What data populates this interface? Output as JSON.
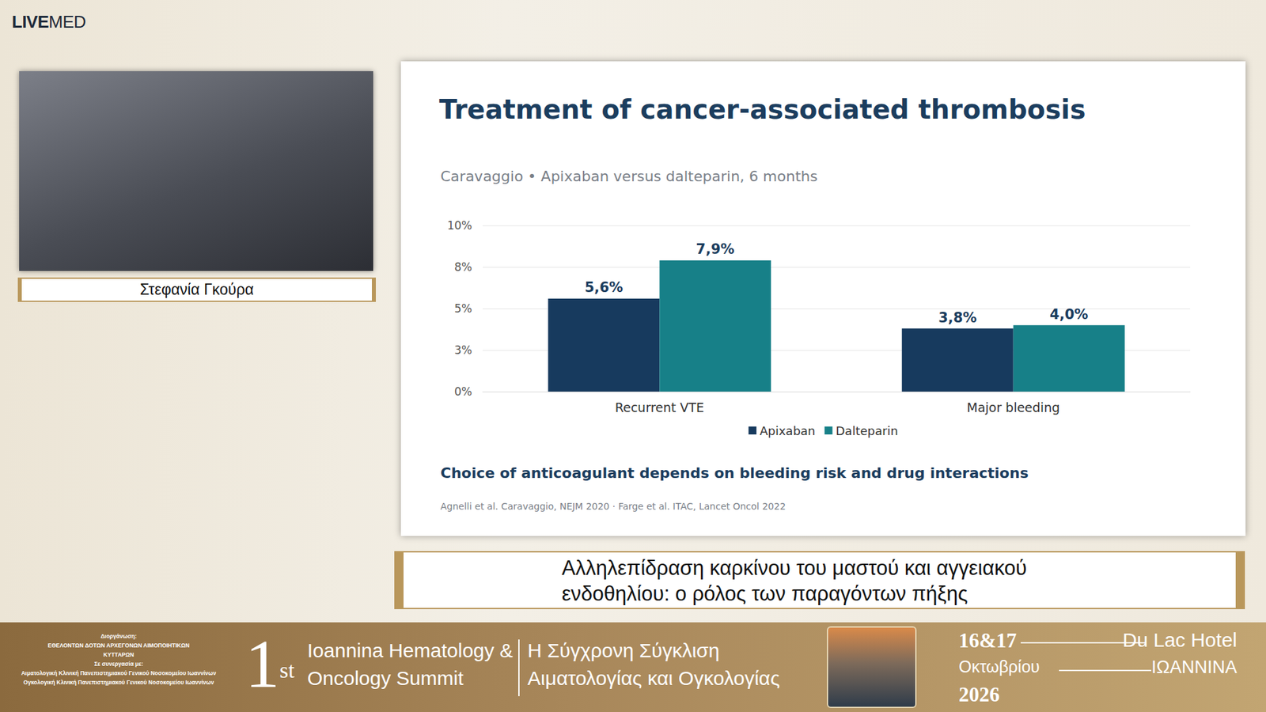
{
  "chart_data": {
    "type": "bar",
    "title": "Treatment of cancer-associated thrombosis",
    "subtitle": "Caravaggio • Apixaban versus dalteparin, 6 months",
    "categories": [
      "Recurrent VTE",
      "Major bleeding"
    ],
    "series": [
      {
        "name": "Apixaban",
        "color": "#173a5e",
        "values": [
          5.6,
          3.8
        ],
        "value_labels": [
          "5,6%",
          "3,8%"
        ]
      },
      {
        "name": "Dalteparin",
        "color": "#178088",
        "values": [
          7.9,
          4.0
        ],
        "value_labels": [
          "7,9%",
          "4,0%"
        ]
      }
    ],
    "ylim": [
      0,
      10
    ],
    "yticks": [
      {
        "value": 0,
        "label": "0%"
      },
      {
        "value": 2.5,
        "label": "3%"
      },
      {
        "value": 5,
        "label": "5%"
      },
      {
        "value": 7.5,
        "label": "8%"
      },
      {
        "value": 10,
        "label": "10%"
      }
    ],
    "grid": true,
    "legend": "bottom",
    "data_labels": true,
    "annotations": [
      "Choice of anticoagulant depends on bleeding risk and drug interactions",
      "Agnelli et al. Caravaggio, NEJM 2020 · Farge et al. ITAC, Lancet Oncol 2022"
    ]
  },
  "frame": {
    "logo": [
      "LIVE",
      "MED"
    ],
    "speaker": "Στεφανία Γκούρα",
    "caption": [
      "Αλληλεπίδραση καρκίνου του μαστού και αγγειακού",
      "ενδοθηλίου: ο ρόλος των παραγόντων πήξης"
    ],
    "banner": {
      "organizer": [
        "Διοργάνωση:",
        "ΕΘΕΛΟΝΤΩΝ ΔΟΤΩΝ ΑΡΧΕΓΟΝΩΝ ΑΙΜΟΠΟΙΗΤΙΚΩΝ",
        "ΚΥΤΤΑΡΩΝ",
        "Σε συνεργασία με:",
        "Αιματολογική Κλινική Πανεπιστημιακού Γενικού Νοσοκομείου Ιωαννίνων",
        "Ογκολογική Κλινική Πανεπιστημιακού Γενικού Νοσοκομείου Ιωαννίνων"
      ],
      "edition": [
        "1",
        "st"
      ],
      "event_en": [
        "Ioannina Hematology &",
        "Oncology Summit"
      ],
      "event_gr": [
        "Η Σύγχρονη Σύγκλιση",
        "Αιματολογίας και Ογκολογίας"
      ],
      "dates": "16&17",
      "month": "Οκτωβρίου",
      "year": "2026",
      "venue": "Du Lac Hotel",
      "city": "ΙΩΑΝΝΙΝΑ"
    }
  }
}
